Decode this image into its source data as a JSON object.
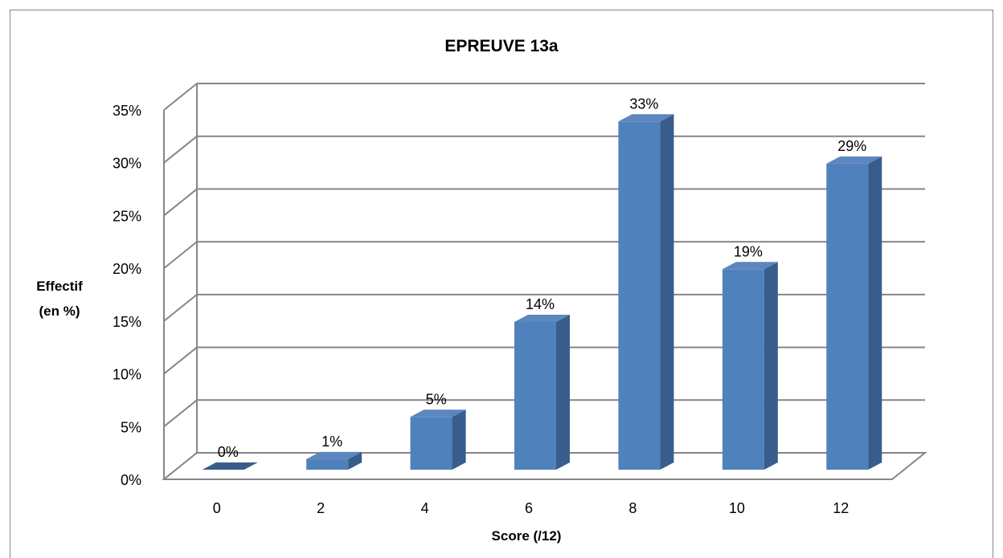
{
  "chart_data": {
    "type": "bar",
    "title": "EPREUVE 13a",
    "xlabel": "Score (/12)",
    "ylabel": [
      "Effectif",
      "(en %)"
    ],
    "categories": [
      "0",
      "2",
      "4",
      "6",
      "8",
      "10",
      "12"
    ],
    "values": [
      0,
      1,
      5,
      14,
      33,
      19,
      29
    ],
    "data_labels": [
      "0%",
      "1%",
      "5%",
      "14%",
      "33%",
      "19%",
      "29%"
    ],
    "yticks": [
      "0%",
      "5%",
      "10%",
      "15%",
      "20%",
      "25%",
      "30%",
      "35%"
    ],
    "ylim": [
      0,
      35
    ],
    "grid": true,
    "legend": "none",
    "style": "3d-column"
  },
  "colors": {
    "bar_front": "#4F81BD",
    "bar_side": "#385D8A",
    "bar_top": "#5B86BE",
    "grid": "#868686",
    "frame": "#868686"
  }
}
